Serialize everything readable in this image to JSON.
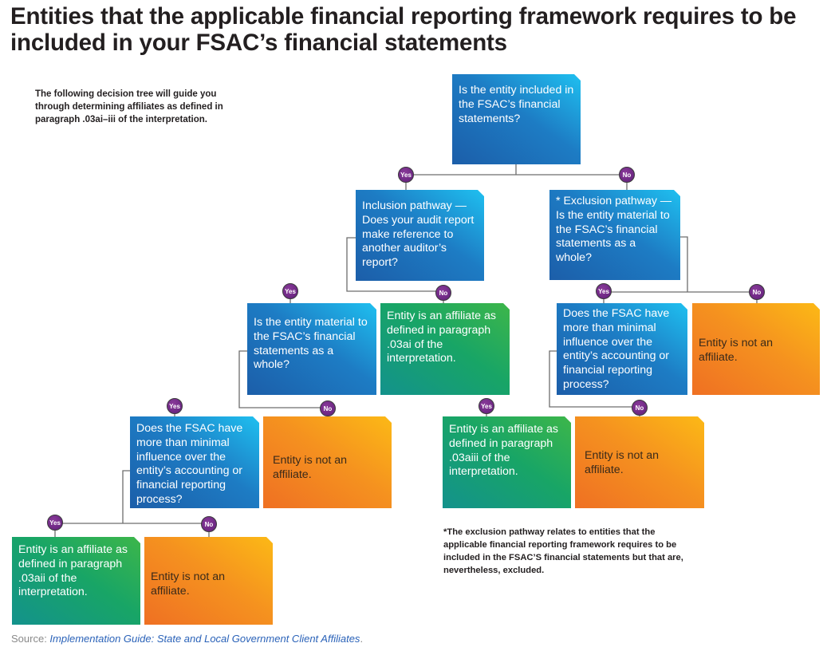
{
  "title": "Entities that the applicable financial reporting framework requires to be included in your FSAC’s financial statements",
  "intro": "The following decision tree will guide you through determining affiliates as defined in paragraph .03ai–iii of the interpretation.",
  "nodes": {
    "q_included": "Is the entity included in the FSAC’s financial statements?",
    "q_inclusion": "Inclusion pathway — Does your audit report make reference to another auditor’s report?",
    "q_exclusion": "* Exclusion pathway — Is the entity material to the FSAC’s financial statements as a whole?",
    "q_material": "Is the entity material to the FSAC’s financial statements as a whole?",
    "r_affiliate_ai": "Entity is an affiliate as defined in paragraph .03ai of the interpretation.",
    "q_influence_excl": "Does the FSAC have more than minimal influence over the entity’s accounting or financial reporting process?",
    "r_not_1": "Entity is not an affiliate.",
    "q_influence_incl": "Does the FSAC have more than minimal influence over the entity’s accounting or financial reporting process?",
    "r_not_2": "Entity is not an affiliate.",
    "r_affiliate_aiii": "Entity is an affiliate as defined in paragraph .03aiii of the interpretation.",
    "r_not_3": "Entity is not an affiliate.",
    "r_affiliate_aii": "Entity is an affiliate as defined in paragraph .03aii of the interpretation.",
    "r_not_4": "Entity is not an affiliate."
  },
  "labels": {
    "yes": "Yes",
    "no": "No"
  },
  "footnote": "*The exclusion pathway relates to entities that the applicable financial reporting framework requires to be included in the FSAC’S financial statements but that are, nevertheless, excluded.",
  "source": {
    "prefix": "Source: ",
    "title": "Implementation Guide: State and Local Government Client Affiliates",
    "suffix": "."
  },
  "colors": {
    "question": "#1d7cc4",
    "affiliate": "#18a566",
    "not_affiliate": "#f5921f",
    "badge": "#6a2a85"
  }
}
